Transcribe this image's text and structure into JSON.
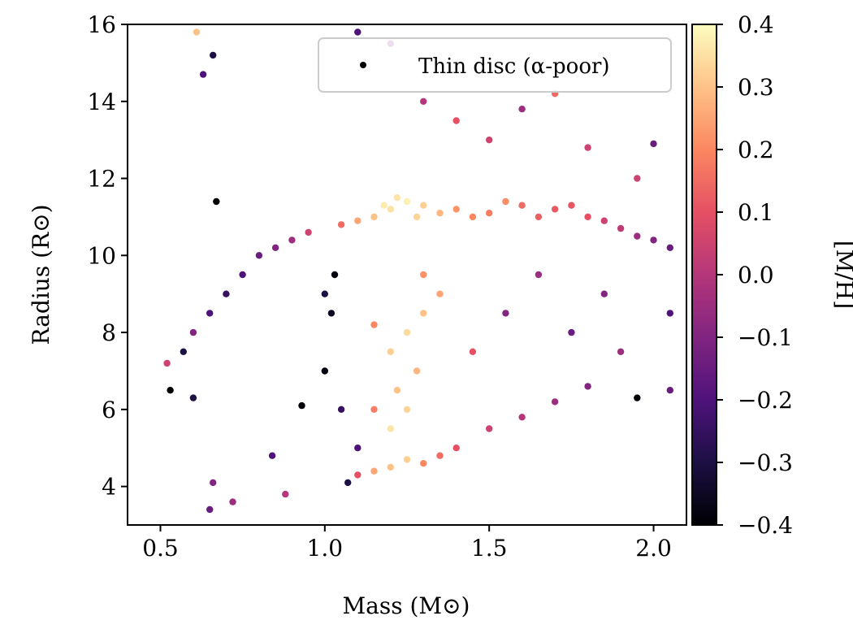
{
  "chart_data": {
    "type": "scatter",
    "title": "",
    "xlabel": "Mass (M⊙)",
    "ylabel": "Radius (R⊙)",
    "xlim": [
      0.4,
      2.1
    ],
    "ylim": [
      3.0,
      16.0
    ],
    "xticks": [
      0.5,
      1.0,
      1.5,
      2.0
    ],
    "yticks": [
      4,
      6,
      8,
      10,
      12,
      14,
      16
    ],
    "xtick_labels": [
      "0.5",
      "1.0",
      "1.5",
      "2.0"
    ],
    "ytick_labels": [
      "4",
      "6",
      "8",
      "10",
      "12",
      "14",
      "16"
    ],
    "grid": false,
    "legend": {
      "placement": "top-right",
      "entries": [
        {
          "label": "Thin disc (α-poor)",
          "marker": "black dot"
        }
      ]
    },
    "colorbar": {
      "label": "[M/H]",
      "colormap": "magma",
      "range": [
        -0.4,
        0.4
      ],
      "ticks": [
        0.4,
        0.3,
        0.2,
        0.1,
        0.0,
        -0.1,
        -0.2,
        -0.3,
        -0.4
      ],
      "tick_labels": [
        "0.4",
        "0.3",
        "0.2",
        "0.1",
        "0.0",
        "−0.1",
        "−0.2",
        "−0.3",
        "−0.4"
      ],
      "stops": [
        "#000004",
        "#1c1044",
        "#4f127b",
        "#812581",
        "#b5367a",
        "#e55064",
        "#fb8761",
        "#fec287",
        "#fcfdbf"
      ]
    },
    "series": [
      {
        "points": [
          [
            1.2,
            11.2,
            0.35
          ],
          [
            1.25,
            11.4,
            0.38
          ],
          [
            1.15,
            11.0,
            0.3
          ],
          [
            1.3,
            11.3,
            0.32
          ],
          [
            1.1,
            10.9,
            0.25
          ],
          [
            1.35,
            11.1,
            0.28
          ],
          [
            1.22,
            11.5,
            0.36
          ],
          [
            1.28,
            11.0,
            0.33
          ],
          [
            1.18,
            11.3,
            0.37
          ],
          [
            1.4,
            11.2,
            0.22
          ],
          [
            1.05,
            10.8,
            0.15
          ],
          [
            1.45,
            11.0,
            0.2
          ],
          [
            1.5,
            11.1,
            0.18
          ],
          [
            1.6,
            11.3,
            0.15
          ],
          [
            1.7,
            11.2,
            0.12
          ],
          [
            1.8,
            11.0,
            0.1
          ],
          [
            1.55,
            11.4,
            0.21
          ],
          [
            1.65,
            11.0,
            0.13
          ],
          [
            1.75,
            11.3,
            0.11
          ],
          [
            1.85,
            10.9,
            0.05
          ],
          [
            1.9,
            10.7,
            0.02
          ],
          [
            1.95,
            10.5,
            -0.05
          ],
          [
            2.0,
            10.4,
            -0.1
          ],
          [
            2.05,
            10.2,
            -0.15
          ],
          [
            0.95,
            10.6,
            0.05
          ],
          [
            0.9,
            10.4,
            -0.05
          ],
          [
            0.85,
            10.2,
            -0.1
          ],
          [
            0.8,
            10.0,
            -0.15
          ],
          [
            0.75,
            9.5,
            -0.2
          ],
          [
            0.7,
            9.0,
            -0.25
          ],
          [
            0.65,
            8.5,
            -0.2
          ],
          [
            0.6,
            8.0,
            -0.1
          ],
          [
            0.57,
            7.5,
            -0.3
          ],
          [
            0.53,
            6.5,
            -0.4
          ],
          [
            0.52,
            7.2,
            0.05
          ],
          [
            1.2,
            4.5,
            0.3
          ],
          [
            1.25,
            4.7,
            0.32
          ],
          [
            1.15,
            4.4,
            0.25
          ],
          [
            1.3,
            4.6,
            0.2
          ],
          [
            1.1,
            4.3,
            0.1
          ],
          [
            1.35,
            4.8,
            0.15
          ],
          [
            1.4,
            5.0,
            0.1
          ],
          [
            1.5,
            5.5,
            0.05
          ],
          [
            1.6,
            5.8,
            0.0
          ],
          [
            1.7,
            6.2,
            -0.05
          ],
          [
            1.8,
            6.6,
            -0.1
          ],
          [
            1.07,
            4.1,
            -0.3
          ],
          [
            1.2,
            5.5,
            0.36
          ],
          [
            1.25,
            6.0,
            0.33
          ],
          [
            1.22,
            6.5,
            0.3
          ],
          [
            1.28,
            7.0,
            0.28
          ],
          [
            1.2,
            7.5,
            0.32
          ],
          [
            1.25,
            8.0,
            0.34
          ],
          [
            1.3,
            8.5,
            0.3
          ],
          [
            1.35,
            9.0,
            0.25
          ],
          [
            1.3,
            9.5,
            0.22
          ],
          [
            1.15,
            8.2,
            0.2
          ],
          [
            1.15,
            6.0,
            0.18
          ],
          [
            1.1,
            5.0,
            -0.2
          ],
          [
            1.05,
            6.0,
            -0.25
          ],
          [
            1.02,
            8.5,
            -0.35
          ],
          [
            1.03,
            9.5,
            -0.38
          ],
          [
            1.0,
            9.0,
            -0.3
          ],
          [
            1.0,
            7.0,
            -0.38
          ],
          [
            1.4,
            13.5,
            0.1
          ],
          [
            1.5,
            13.0,
            0.05
          ],
          [
            1.3,
            14.0,
            0.0
          ],
          [
            1.6,
            13.8,
            -0.05
          ],
          [
            1.7,
            14.2,
            0.15
          ],
          [
            1.2,
            15.5,
            -0.1
          ],
          [
            1.1,
            15.8,
            -0.2
          ],
          [
            1.8,
            12.8,
            0.05
          ],
          [
            2.0,
            12.9,
            -0.15
          ],
          [
            1.95,
            6.3,
            -0.4
          ],
          [
            0.63,
            14.7,
            -0.2
          ],
          [
            0.66,
            15.2,
            -0.3
          ],
          [
            0.66,
            4.1,
            -0.1
          ],
          [
            0.65,
            3.4,
            -0.15
          ],
          [
            0.72,
            3.6,
            -0.05
          ],
          [
            0.88,
            3.8,
            0.0
          ],
          [
            0.84,
            4.8,
            -0.2
          ],
          [
            0.93,
            6.1,
            -0.4
          ],
          [
            0.6,
            6.3,
            -0.3
          ],
          [
            0.67,
            11.4,
            -0.4
          ],
          [
            0.61,
            15.8,
            0.3
          ],
          [
            1.45,
            7.5,
            0.1
          ],
          [
            1.55,
            8.5,
            -0.1
          ],
          [
            1.65,
            9.5,
            -0.05
          ],
          [
            1.75,
            8.0,
            -0.15
          ],
          [
            1.85,
            9.0,
            -0.1
          ],
          [
            1.9,
            7.5,
            -0.05
          ],
          [
            2.05,
            6.5,
            -0.15
          ],
          [
            2.05,
            8.5,
            -0.2
          ],
          [
            1.95,
            12.0,
            0.05
          ]
        ]
      }
    ]
  }
}
